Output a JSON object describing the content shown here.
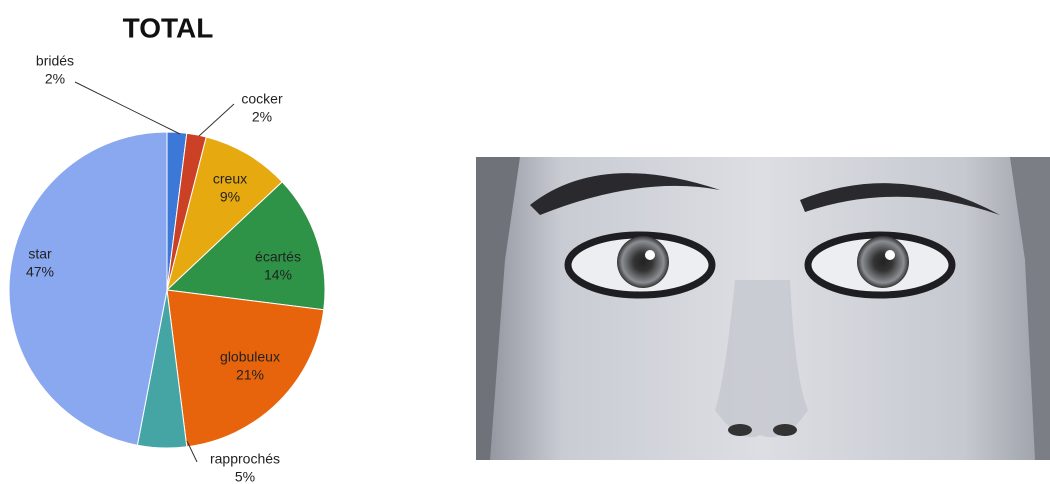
{
  "chart_data": {
    "type": "pie",
    "title": "TOTAL",
    "categories": [
      "bridés",
      "cocker",
      "creux",
      "écartés",
      "globuleux",
      "rapprochés",
      "star"
    ],
    "values": [
      2,
      2,
      9,
      14,
      21,
      5,
      47
    ],
    "value_labels": [
      "2%",
      "2%",
      "9%",
      "14%",
      "21%",
      "5%",
      "47%"
    ],
    "colors": [
      "#3c78d8",
      "#cc4125",
      "#e6a910",
      "#2e9347",
      "#e8640c",
      "#45a5a5",
      "#8aa8f0"
    ]
  }
}
